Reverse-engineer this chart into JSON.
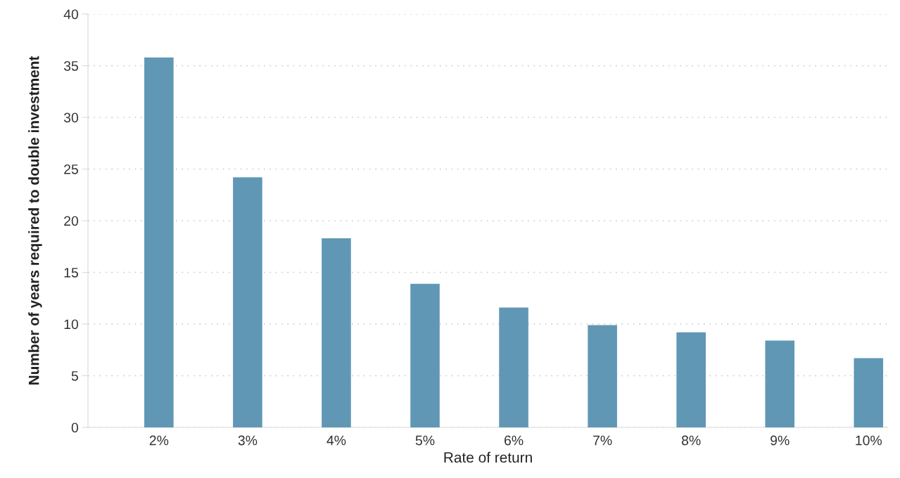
{
  "chart_data": {
    "type": "bar",
    "xlabel": "Rate of return",
    "ylabel": "Number of years required to double investment",
    "categories": [
      "2%",
      "3%",
      "4%",
      "5%",
      "6%",
      "7%",
      "8%",
      "9%",
      "10%"
    ],
    "values": [
      35.8,
      24.2,
      18.3,
      13.9,
      11.6,
      9.9,
      9.2,
      8.4,
      6.7
    ],
    "color": "#6097b5",
    "ylim": [
      0,
      40
    ],
    "yticks": [
      0,
      5,
      10,
      15,
      20,
      25,
      30,
      35,
      40
    ],
    "grid": "y"
  }
}
